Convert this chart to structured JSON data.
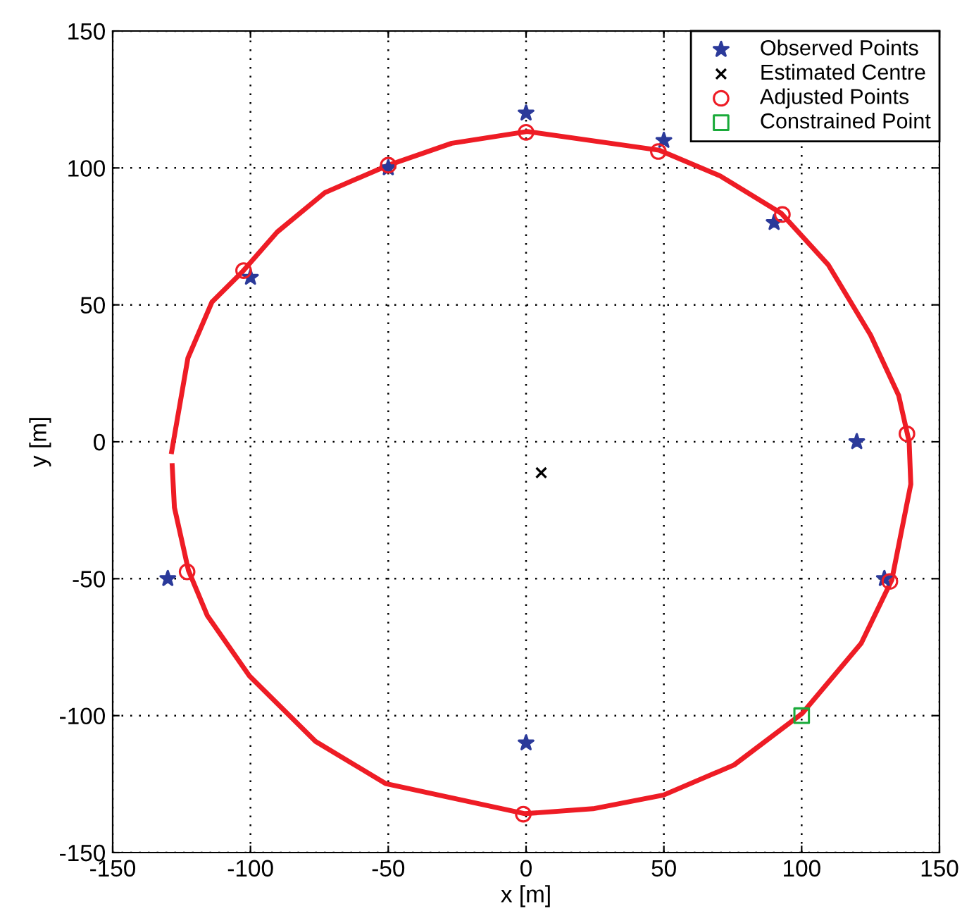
{
  "chart_data": {
    "type": "line",
    "xlabel": "x [m]",
    "ylabel": "y [m]",
    "xlim": [
      -150,
      150
    ],
    "ylim": [
      -150,
      150
    ],
    "xticks": [
      -150,
      -100,
      -50,
      0,
      50,
      100,
      150
    ],
    "yticks": [
      -150,
      -100,
      -50,
      0,
      50,
      100,
      150
    ],
    "grid": true,
    "legend": "top right",
    "series": [
      {
        "color": "#ee1c25",
        "line_style": "solid",
        "marker": "none",
        "x": [
          -128.6,
          -122.7,
          -114,
          -103,
          -90.3,
          -73,
          -50,
          -27,
          0.4,
          48.2,
          70.4,
          92.5,
          109.6,
          125,
          135.2,
          139,
          139.6,
          132.7,
          121.6,
          100.2,
          75.5,
          49.9,
          24.3,
          -0.4,
          -51,
          -76.4,
          -100.4,
          -115.7,
          -122.5,
          -127.6,
          -128.4
        ],
        "values": [
          -3.6,
          30.6,
          51,
          62,
          76.6,
          91,
          101,
          109,
          113.3,
          106.5,
          97.1,
          83.5,
          64.7,
          39,
          16.9,
          0,
          -15.5,
          -50.5,
          -73.6,
          -99.2,
          -118,
          -129,
          -134,
          -135.8,
          -124.8,
          -109.4,
          -85.5,
          -63.4,
          -47,
          -24,
          -8.7
        ]
      },
      {
        "type": "scatter",
        "name": "Observed Points",
        "color": "#2b3a9a",
        "marker": "star",
        "x": [
          0,
          50,
          -50,
          90,
          -100,
          120,
          -130,
          130,
          0
        ],
        "values": [
          120,
          110,
          100,
          80,
          60,
          0,
          -50,
          -50,
          -110
        ]
      },
      {
        "type": "scatter",
        "name": "Estimated Centre",
        "color": "#000000",
        "marker": "cross",
        "x": [
          5.5
        ],
        "values": [
          -11.3
        ]
      },
      {
        "type": "scatter",
        "name": "Adjusted Points",
        "color": "#ee1c25",
        "marker": "circle",
        "x": [
          -102.5,
          -50,
          0,
          48,
          93,
          138.2,
          132,
          -1,
          -123
        ],
        "values": [
          62.5,
          101,
          113,
          106,
          83,
          2.9,
          -51,
          -136,
          -47.5
        ]
      },
      {
        "type": "scatter",
        "name": "Constrained Point",
        "color": "#1aaa3a",
        "marker": "square",
        "x": [
          100
        ],
        "values": [
          -100
        ]
      }
    ]
  }
}
